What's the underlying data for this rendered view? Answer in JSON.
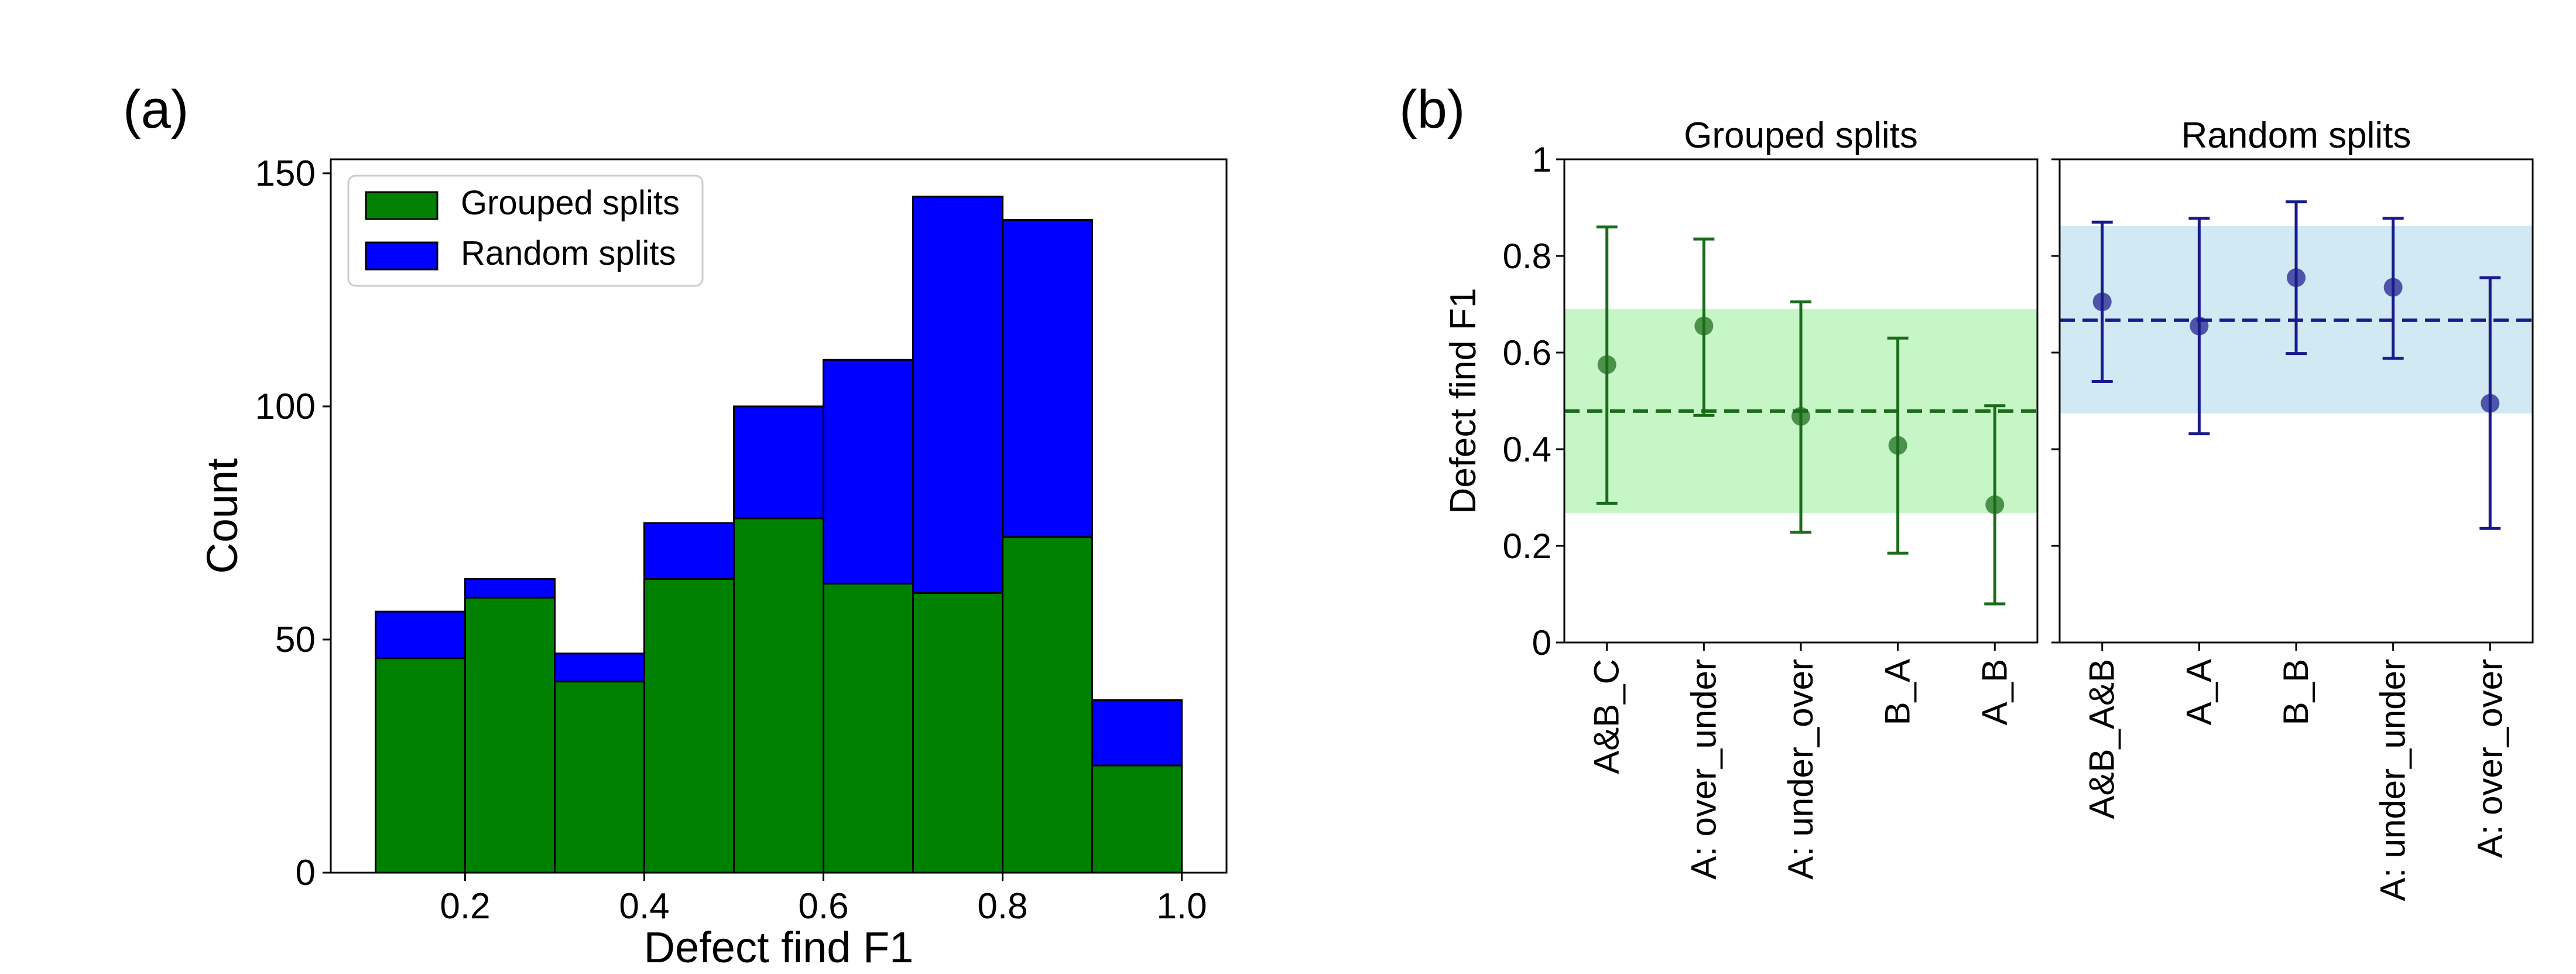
{
  "panels": {
    "a": {
      "label": "(a)"
    },
    "b": {
      "label": "(b)"
    }
  },
  "chart_data": [
    {
      "type": "bar",
      "subtype": "stacked-histogram",
      "bin_edges": [
        0.1,
        0.2,
        0.3,
        0.4,
        0.5,
        0.6,
        0.7,
        0.8,
        0.9,
        1.0
      ],
      "series": [
        {
          "name": "Grouped splits",
          "color": "#008000",
          "values": [
            46,
            59,
            41,
            63,
            76,
            62,
            60,
            72,
            23
          ]
        },
        {
          "name": "Random splits",
          "color": "#0000ff",
          "values": [
            10,
            4,
            6,
            12,
            24,
            48,
            85,
            68,
            14
          ]
        }
      ],
      "xlabel": "Defect find F1",
      "ylabel": "Count",
      "xticks": [
        "0.2",
        "0.4",
        "0.6",
        "0.8",
        "1.0"
      ],
      "yticks": [
        "0",
        "50",
        "100",
        "150"
      ],
      "xlim": [
        0.05,
        1.05
      ],
      "ylim": [
        0,
        153
      ],
      "legend": {
        "position": "top-left"
      }
    },
    {
      "type": "scatter",
      "subtype": "errorbar",
      "title": "Grouped splits",
      "color": "#1a6b1a",
      "band_color": "#c6f5c6",
      "categories": [
        "A&B_C",
        "A: over_under",
        "A: under_over",
        "B_A",
        "A_B"
      ],
      "values": [
        0.575,
        0.655,
        0.468,
        0.408,
        0.285
      ],
      "lower": [
        0.288,
        0.47,
        0.228,
        0.185,
        0.08
      ],
      "upper": [
        0.86,
        0.835,
        0.705,
        0.63,
        0.49
      ],
      "mean": 0.479,
      "band": [
        0.268,
        0.69
      ],
      "ylabel": "Defect find F1",
      "yticks": [
        "0",
        "0.2",
        "0.4",
        "0.6",
        "0.8",
        "1"
      ],
      "ylim": [
        0,
        1
      ]
    },
    {
      "type": "scatter",
      "subtype": "errorbar",
      "title": "Random splits",
      "color": "#1a1a8c",
      "band_color": "#d0e9f2",
      "categories": [
        "A&B_A&B",
        "A_A",
        "B_B",
        "A: under_under",
        "A: over_over"
      ],
      "values": [
        0.705,
        0.655,
        0.755,
        0.735,
        0.495
      ],
      "lower": [
        0.54,
        0.432,
        0.598,
        0.588,
        0.236
      ],
      "upper": [
        0.87,
        0.878,
        0.912,
        0.878,
        0.755
      ],
      "mean": 0.667,
      "band": [
        0.474,
        0.862
      ],
      "yticks": [
        "0",
        "0.2",
        "0.4",
        "0.6",
        "0.8",
        "1"
      ],
      "ylim": [
        0,
        1
      ]
    }
  ]
}
